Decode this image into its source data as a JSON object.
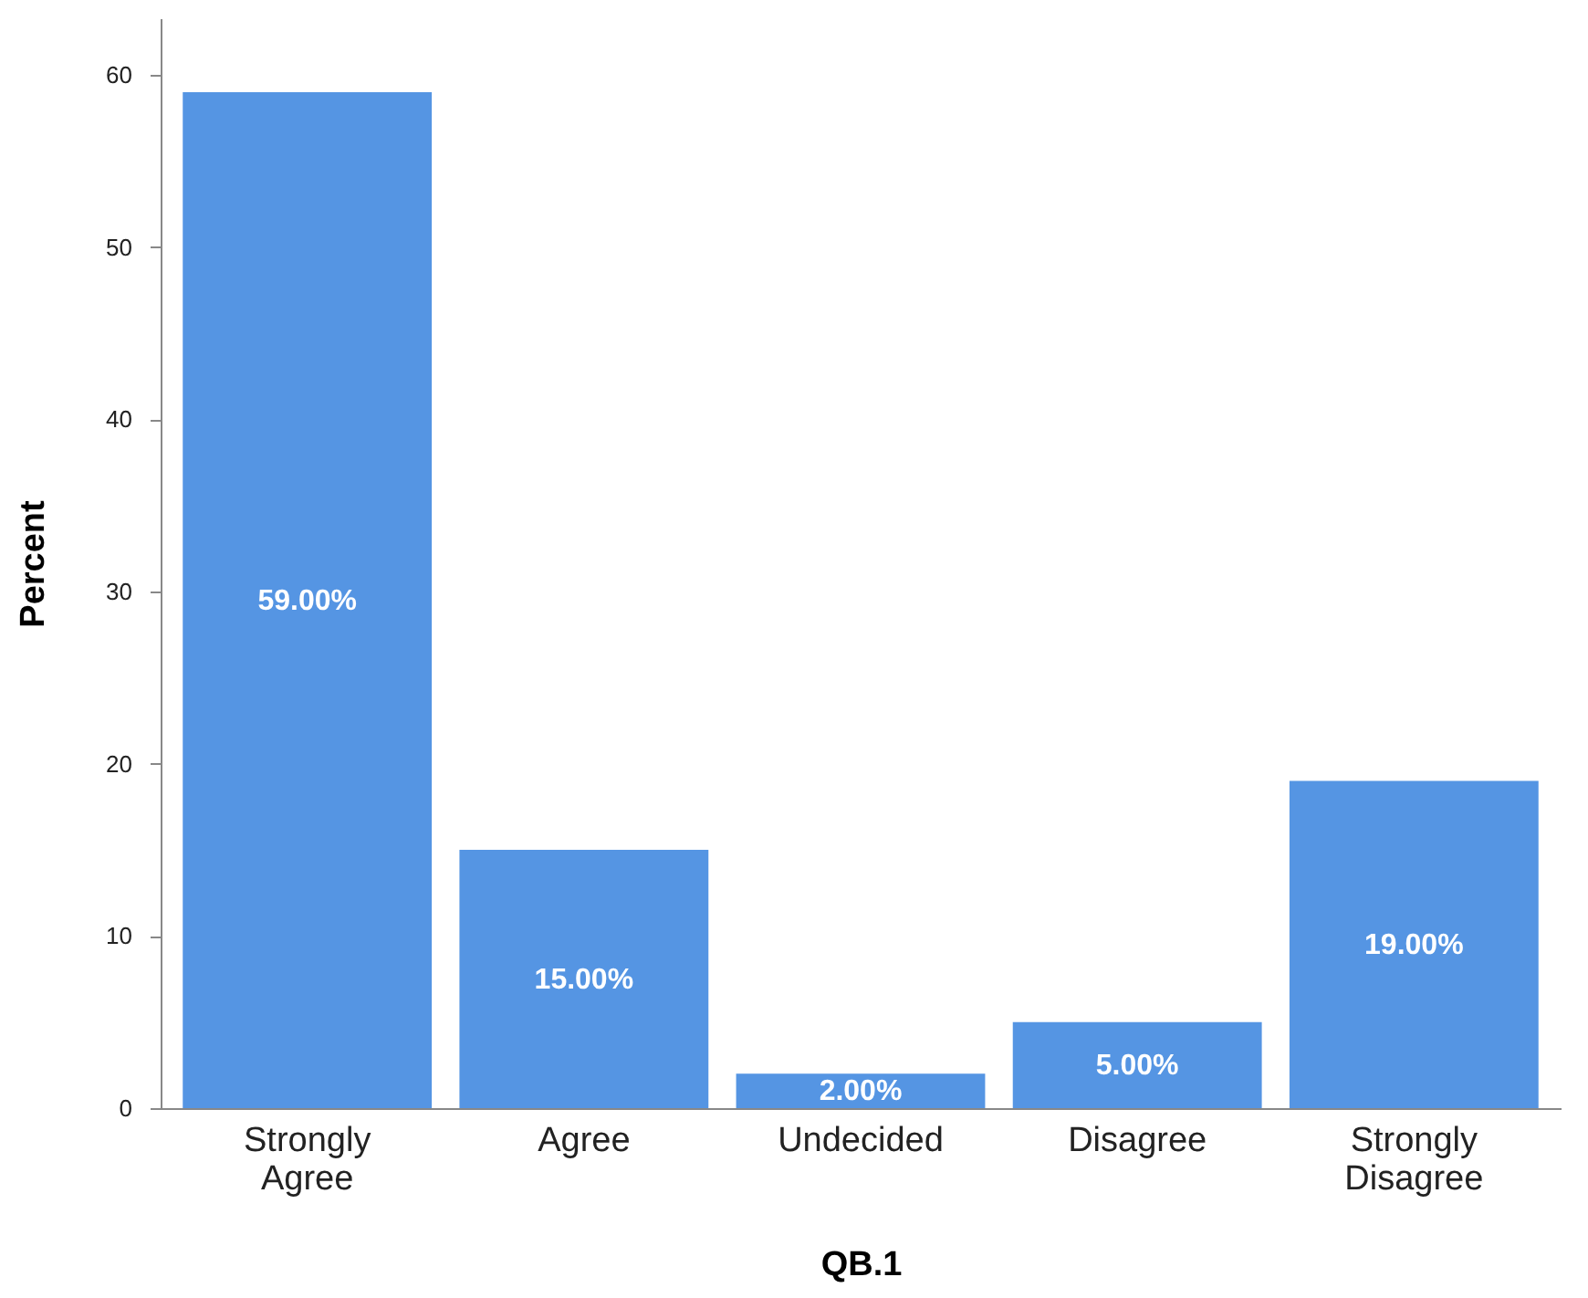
{
  "chart_data": {
    "type": "bar",
    "xlabel": "QB.1",
    "ylabel": "Percent",
    "categories": [
      "Strongly Agree",
      "Agree",
      "Undecided",
      "Disagree",
      "Strongly Disagree"
    ],
    "values": [
      59,
      15,
      2,
      5,
      19
    ],
    "value_labels": [
      "59.00%",
      "15.00%",
      "2.00%",
      "5.00%",
      "19.00%"
    ],
    "color": "#5595e3",
    "ylim": [
      0,
      63.3
    ],
    "yticks": [
      0,
      10,
      20,
      30,
      40,
      50,
      60
    ],
    "grid": false
  }
}
